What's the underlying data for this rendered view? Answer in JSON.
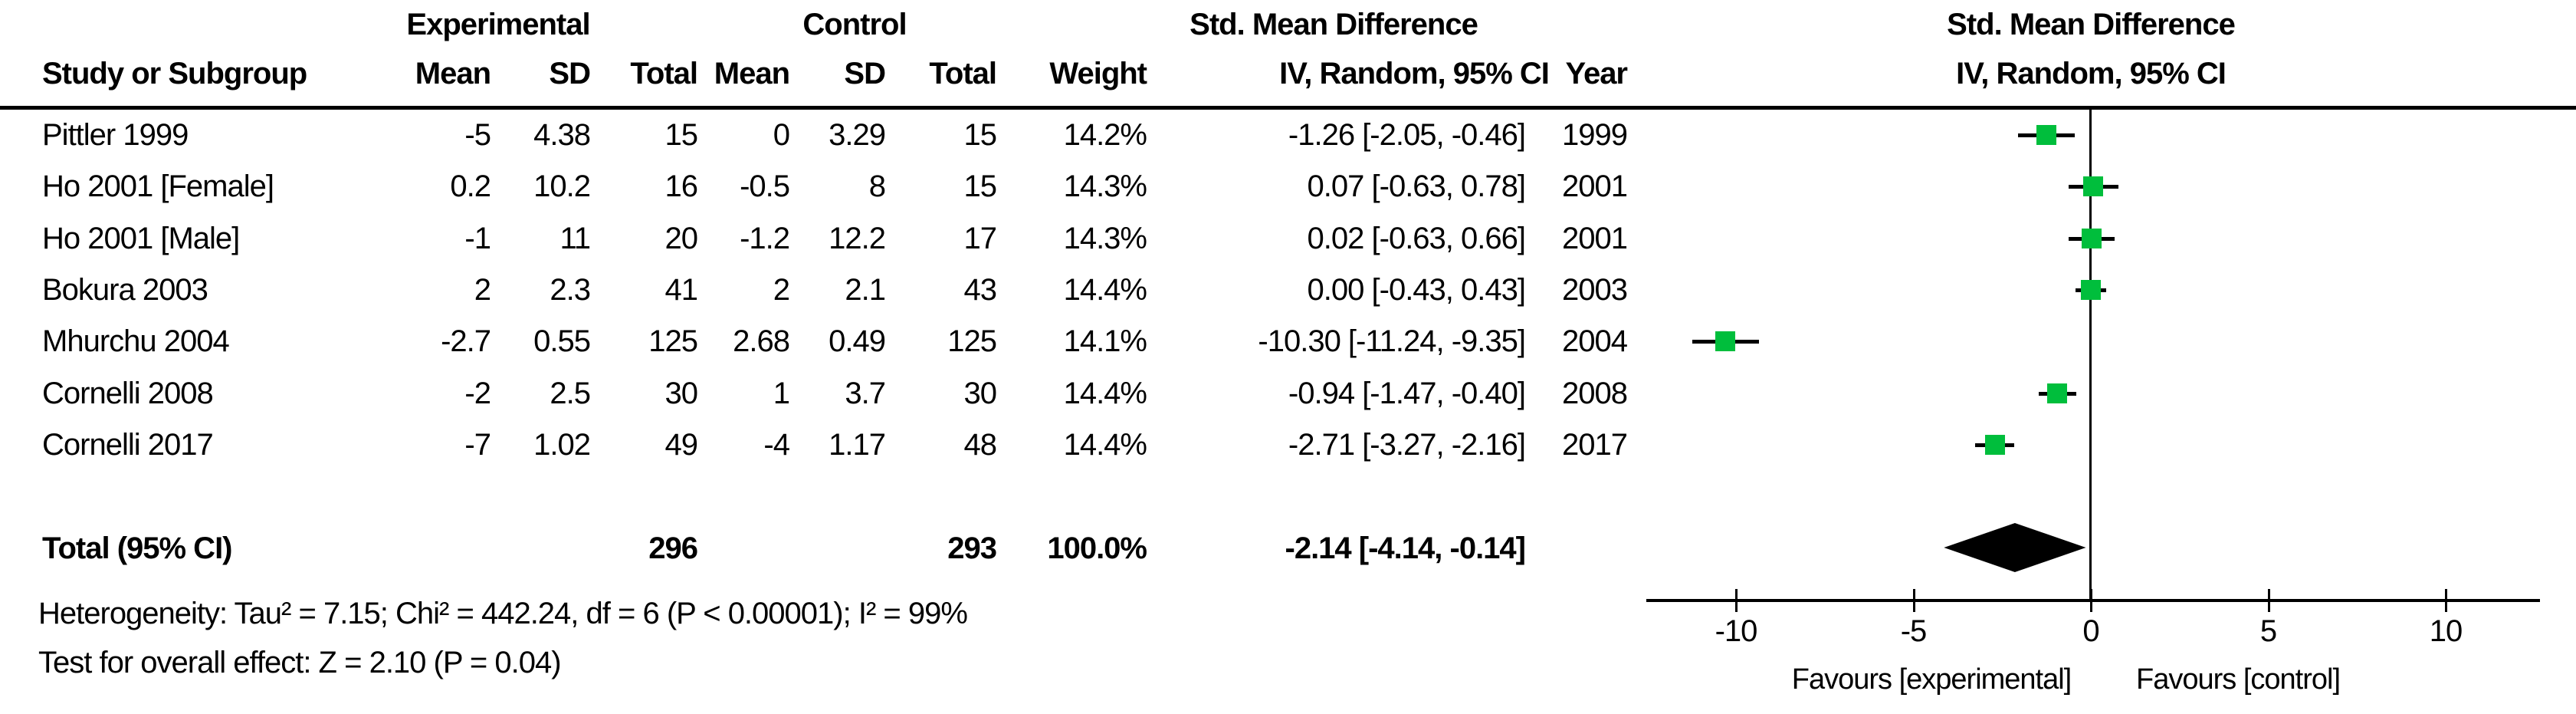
{
  "header": {
    "group_experimental": "Experimental",
    "group_control": "Control",
    "smd_table": "Std. Mean Difference",
    "smd_plot": "Std. Mean Difference",
    "col_study": "Study or Subgroup",
    "col_mean_exp": "Mean",
    "col_sd_exp": "SD",
    "col_total_exp": "Total",
    "col_mean_ctl": "Mean",
    "col_sd_ctl": "SD",
    "col_total_ctl": "Total",
    "col_weight": "Weight",
    "col_ci": "IV, Random, 95% CI",
    "col_year": "Year",
    "col_ci_plot": "IV, Random, 95% CI"
  },
  "chart_data": {
    "type": "scatter",
    "subtype": "forest-plot",
    "effect_measure": "Std. Mean Difference",
    "model": "IV, Random, 95% CI",
    "marker_color": "#00BE3C",
    "line_color": "#000000",
    "x_ticks": [
      -10,
      -5,
      0,
      5,
      10
    ],
    "xlim": [
      -12.5,
      12.6
    ],
    "favours_left": "Favours [experimental]",
    "favours_right": "Favours [control]",
    "studies": [
      {
        "name": "Pittler 1999",
        "mean_exp": "-5",
        "sd_exp": "4.38",
        "total_exp": "15",
        "mean_ctl": "0",
        "sd_ctl": "3.29",
        "total_ctl": "15",
        "weight": "14.2%",
        "ci_text": "-1.26 [-2.05, -0.46]",
        "year": "1999",
        "smd": -1.26,
        "ci_low": -2.05,
        "ci_high": -0.46
      },
      {
        "name": "Ho 2001 [Female]",
        "mean_exp": "0.2",
        "sd_exp": "10.2",
        "total_exp": "16",
        "mean_ctl": "-0.5",
        "sd_ctl": "8",
        "total_ctl": "15",
        "weight": "14.3%",
        "ci_text": "0.07 [-0.63, 0.78]",
        "year": "2001",
        "smd": 0.07,
        "ci_low": -0.63,
        "ci_high": 0.78
      },
      {
        "name": "Ho 2001 [Male]",
        "mean_exp": "-1",
        "sd_exp": "11",
        "total_exp": "20",
        "mean_ctl": "-1.2",
        "sd_ctl": "12.2",
        "total_ctl": "17",
        "weight": "14.3%",
        "ci_text": "0.02 [-0.63, 0.66]",
        "year": "2001",
        "smd": 0.02,
        "ci_low": -0.63,
        "ci_high": 0.66
      },
      {
        "name": "Bokura 2003",
        "mean_exp": "2",
        "sd_exp": "2.3",
        "total_exp": "41",
        "mean_ctl": "2",
        "sd_ctl": "2.1",
        "total_ctl": "43",
        "weight": "14.4%",
        "ci_text": "0.00 [-0.43, 0.43]",
        "year": "2003",
        "smd": 0.0,
        "ci_low": -0.43,
        "ci_high": 0.43
      },
      {
        "name": "Mhurchu 2004",
        "mean_exp": "-2.7",
        "sd_exp": "0.55",
        "total_exp": "125",
        "mean_ctl": "2.68",
        "sd_ctl": "0.49",
        "total_ctl": "125",
        "weight": "14.1%",
        "ci_text": "-10.30 [-11.24, -9.35]",
        "year": "2004",
        "smd": -10.3,
        "ci_low": -11.24,
        "ci_high": -9.35
      },
      {
        "name": "Cornelli 2008",
        "mean_exp": "-2",
        "sd_exp": "2.5",
        "total_exp": "30",
        "mean_ctl": "1",
        "sd_ctl": "3.7",
        "total_ctl": "30",
        "weight": "14.4%",
        "ci_text": "-0.94 [-1.47, -0.40]",
        "year": "2008",
        "smd": -0.94,
        "ci_low": -1.47,
        "ci_high": -0.4
      },
      {
        "name": "Cornelli 2017",
        "mean_exp": "-7",
        "sd_exp": "1.02",
        "total_exp": "49",
        "mean_ctl": "-4",
        "sd_ctl": "1.17",
        "total_ctl": "48",
        "weight": "14.4%",
        "ci_text": "-2.71 [-3.27, -2.16]",
        "year": "2017",
        "smd": -2.71,
        "ci_low": -3.27,
        "ci_high": -2.16
      }
    ],
    "total": {
      "label": "Total (95% CI)",
      "total_exp": "296",
      "total_ctl": "293",
      "weight": "100.0%",
      "ci_text": "-2.14 [-4.14, -0.14]",
      "smd": -2.14,
      "ci_low": -4.14,
      "ci_high": -0.14
    },
    "heterogeneity": "Heterogeneity: Tau² = 7.15; Chi² = 442.24, df = 6 (P < 0.00001); I² = 99%",
    "overall_effect": "Test for overall effect: Z = 2.10 (P = 0.04)"
  }
}
